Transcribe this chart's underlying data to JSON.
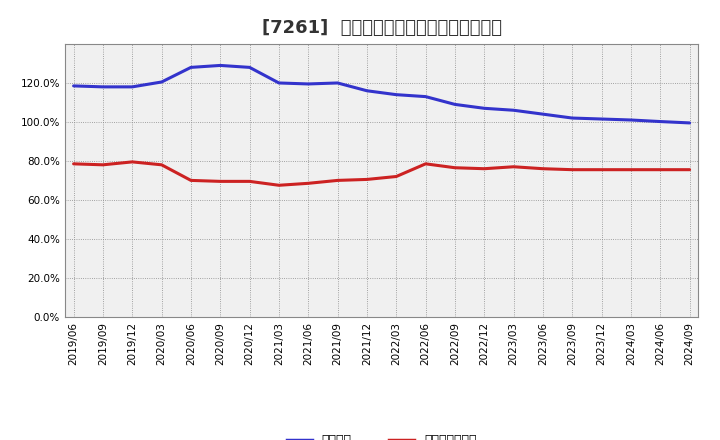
{
  "title": "[7261]  固定比率、固定長期適合率の推移",
  "x_labels": [
    "2019/06",
    "2019/09",
    "2019/12",
    "2020/03",
    "2020/06",
    "2020/09",
    "2020/12",
    "2021/03",
    "2021/06",
    "2021/09",
    "2021/12",
    "2022/03",
    "2022/06",
    "2022/09",
    "2022/12",
    "2023/03",
    "2023/06",
    "2023/09",
    "2023/12",
    "2024/03",
    "2024/06",
    "2024/09"
  ],
  "blue_values": [
    118.5,
    118.0,
    118.0,
    120.5,
    128.0,
    129.0,
    128.0,
    120.0,
    119.5,
    120.0,
    116.0,
    114.0,
    113.0,
    109.0,
    107.0,
    106.0,
    104.0,
    102.0,
    101.5,
    101.0,
    100.2,
    99.5
  ],
  "red_values": [
    78.5,
    78.0,
    79.5,
    78.0,
    70.0,
    69.5,
    69.5,
    67.5,
    68.5,
    70.0,
    70.5,
    72.0,
    78.5,
    76.5,
    76.0,
    77.0,
    76.0,
    75.5,
    75.5,
    75.5,
    75.5,
    75.5
  ],
  "blue_color": "#3333cc",
  "red_color": "#cc2222",
  "ylim_max": 140,
  "yticks": [
    0,
    20,
    40,
    60,
    80,
    100,
    120
  ],
  "plot_bg_color": "#f0f0f0",
  "fig_bg_color": "#ffffff",
  "grid_color": "#888888",
  "legend_blue": "固定比率",
  "legend_red": "固定長期適合率",
  "title_fontsize": 13,
  "tick_fontsize": 7.5,
  "line_width": 2.2
}
